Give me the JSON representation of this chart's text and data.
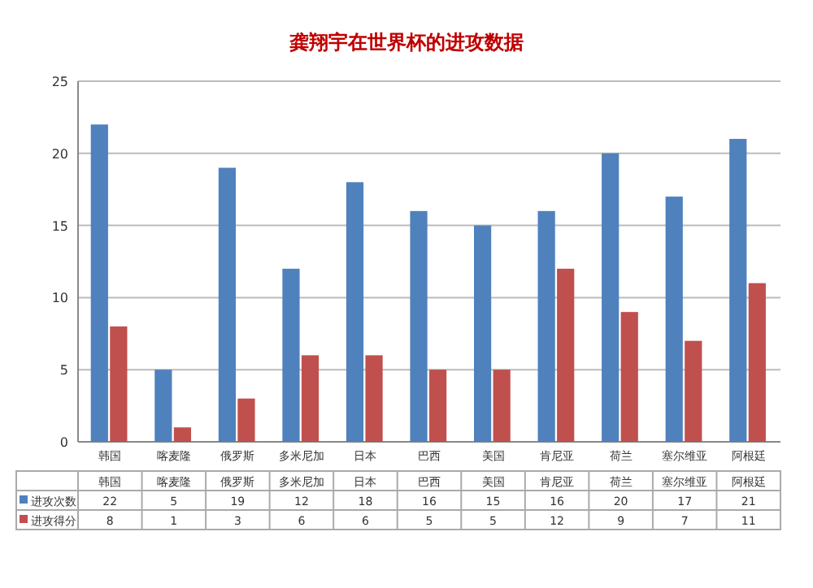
{
  "chart_data": {
    "type": "bar",
    "title": "龚翔宇在世界杯的进攻数据",
    "categories": [
      "韩国",
      "喀麦隆",
      "俄罗斯",
      "多米尼加",
      "日本",
      "巴西",
      "美国",
      "肯尼亚",
      "荷兰",
      "塞尔维亚",
      "阿根廷"
    ],
    "series": [
      {
        "name": "进攻次数",
        "color": "#4f81bd",
        "values": [
          22,
          5,
          19,
          12,
          18,
          16,
          15,
          16,
          20,
          17,
          21
        ]
      },
      {
        "name": "进攻得分",
        "color": "#c0504d",
        "values": [
          8,
          1,
          3,
          6,
          6,
          5,
          5,
          12,
          9,
          7,
          11
        ]
      }
    ],
    "ylim": [
      0,
      25
    ],
    "yticks": [
      0,
      5,
      10,
      15,
      20,
      25
    ],
    "grid": "y",
    "legend": "bottom",
    "data_labels": true
  }
}
